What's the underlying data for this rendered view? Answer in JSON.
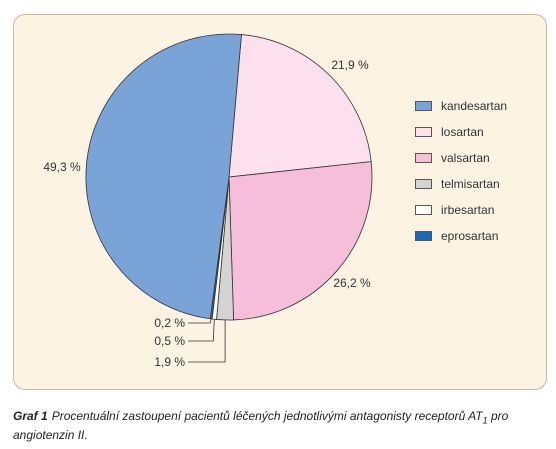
{
  "chart_data": {
    "type": "pie",
    "slices": [
      {
        "name": "kandesartan",
        "value": 49.3,
        "label": "49,3 %",
        "color": "#7aa4d8"
      },
      {
        "name": "losartan",
        "value": 21.9,
        "label": "21,9 %",
        "color": "#fde0ee"
      },
      {
        "name": "valsartan",
        "value": 26.2,
        "label": "26,2 %",
        "color": "#f6bed8"
      },
      {
        "name": "telmisartan",
        "value": 1.9,
        "label": "1,9 %",
        "color": "#d4d4d4"
      },
      {
        "name": "irbesartan",
        "value": 0.5,
        "label": "0,5 %",
        "color": "#ffffff"
      },
      {
        "name": "eprosartan",
        "value": 0.2,
        "label": "0,2 %",
        "color": "#1a68b8"
      }
    ],
    "legend_position": "right",
    "legend": [
      "kandesartan",
      "losartan",
      "valsartan",
      "telmisartan",
      "irbesartan",
      "eprosartan"
    ]
  },
  "caption": {
    "label": "Graf 1",
    "text_before": "Procentuální zastoupení pacientů léčených jednotlivými antagonisty receptorů AT",
    "subscript": "1",
    "text_after": " pro angiotenzin II."
  }
}
